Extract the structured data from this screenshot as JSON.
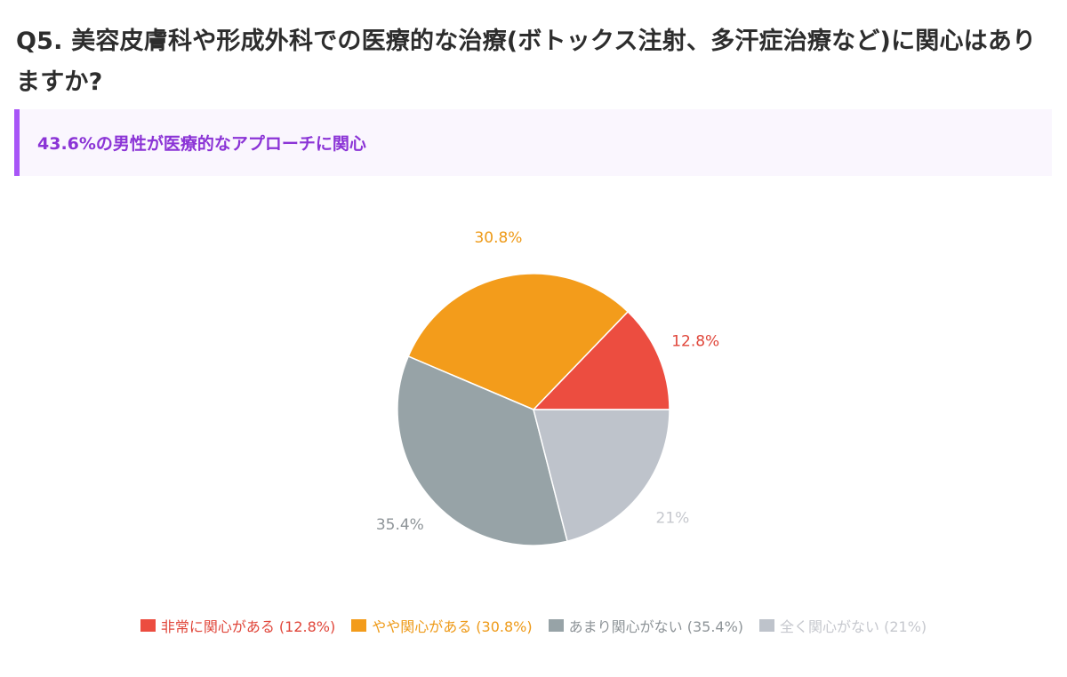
{
  "question": "Q5. 美容皮膚科や形成外科での医療的な治療(ボトックス注射、多汗症治療など)に関心はありますか?",
  "highlight": "43.6%の男性が医療的なアプローチに関心",
  "chart_data": {
    "type": "pie",
    "slices": [
      {
        "label": "非常に関心がある",
        "value": 12.8,
        "data_label": "12.8%",
        "legend_label": "非常に関心がある (12.8%)",
        "color": "#ec4d40",
        "label_color": "#e0463a"
      },
      {
        "label": "やや関心がある",
        "value": 30.8,
        "data_label": "30.8%",
        "legend_label": "やや関心がある (30.8%)",
        "color": "#f39c1b",
        "label_color": "#ee9a18"
      },
      {
        "label": "あまり関心がない",
        "value": 35.4,
        "data_label": "35.4%",
        "legend_label": "あまり関心がない (35.4%)",
        "color": "#97a3a7",
        "label_color": "#8e9498"
      },
      {
        "label": "全く関心がない",
        "value": 21,
        "data_label": "21%",
        "legend_label": "全く関心がない (21%)",
        "color": "#bec3cb",
        "label_color": "#c6c8ce"
      }
    ],
    "start_direction": "3 o'clock",
    "direction": "counter-clockwise",
    "legend_position": "bottom"
  }
}
